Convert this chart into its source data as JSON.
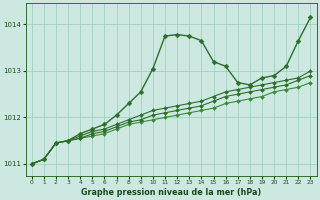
{
  "title": "Graphe pression niveau de la mer (hPa)",
  "background_color": "#cce8e0",
  "grid_color": "#99ccbb",
  "xlim": [
    -0.5,
    23.5
  ],
  "ylim": [
    1010.75,
    1014.45
  ],
  "yticks": [
    1011,
    1012,
    1013,
    1014
  ],
  "xticks": [
    0,
    1,
    2,
    3,
    4,
    5,
    6,
    7,
    8,
    9,
    10,
    11,
    12,
    13,
    14,
    15,
    16,
    17,
    18,
    19,
    20,
    21,
    22,
    23
  ],
  "series": [
    {
      "x": [
        0,
        1,
        2,
        3,
        4,
        5,
        6,
        7,
        8,
        9,
        10,
        11,
        12,
        13,
        14,
        15,
        16,
        17,
        18,
        19,
        20,
        21,
        22,
        23
      ],
      "y": [
        1011.0,
        1011.1,
        1011.45,
        1011.5,
        1011.55,
        1011.6,
        1011.65,
        1011.75,
        1011.85,
        1011.9,
        1011.95,
        1012.0,
        1012.05,
        1012.1,
        1012.15,
        1012.2,
        1012.3,
        1012.35,
        1012.4,
        1012.45,
        1012.55,
        1012.6,
        1012.65,
        1012.75
      ],
      "color": "#3a8a3a",
      "marker": "D",
      "markersize": 2.0,
      "linewidth": 0.8,
      "zorder": 2
    },
    {
      "x": [
        0,
        1,
        2,
        3,
        4,
        5,
        6,
        7,
        8,
        9,
        10,
        11,
        12,
        13,
        14,
        15,
        16,
        17,
        18,
        19,
        20,
        21,
        22,
        23
      ],
      "y": [
        1011.0,
        1011.1,
        1011.45,
        1011.5,
        1011.55,
        1011.65,
        1011.7,
        1011.8,
        1011.9,
        1011.95,
        1012.05,
        1012.1,
        1012.15,
        1012.2,
        1012.25,
        1012.35,
        1012.45,
        1012.5,
        1012.55,
        1012.6,
        1012.65,
        1012.7,
        1012.8,
        1012.9
      ],
      "color": "#2d6e2d",
      "marker": "D",
      "markersize": 2.0,
      "linewidth": 0.8,
      "zorder": 2
    },
    {
      "x": [
        0,
        1,
        2,
        3,
        4,
        5,
        6,
        7,
        8,
        9,
        10,
        11,
        12,
        13,
        14,
        15,
        16,
        17,
        18,
        19,
        20,
        21,
        22,
        23
      ],
      "y": [
        1011.0,
        1011.1,
        1011.45,
        1011.5,
        1011.6,
        1011.7,
        1011.75,
        1011.85,
        1011.95,
        1012.05,
        1012.15,
        1012.2,
        1012.25,
        1012.3,
        1012.35,
        1012.45,
        1012.55,
        1012.6,
        1012.65,
        1012.7,
        1012.75,
        1012.8,
        1012.85,
        1013.0
      ],
      "color": "#2d6e2d",
      "marker": "D",
      "markersize": 2.0,
      "linewidth": 0.8,
      "zorder": 2
    },
    {
      "x": [
        0,
        1,
        2,
        3,
        4,
        5,
        6,
        7,
        8,
        9,
        10,
        11,
        12,
        13,
        14,
        15,
        16,
        17,
        18,
        19,
        20,
        21,
        22,
        23
      ],
      "y": [
        1011.0,
        1011.1,
        1011.45,
        1011.5,
        1011.65,
        1011.75,
        1011.85,
        1012.05,
        1012.3,
        1012.55,
        1013.05,
        1013.75,
        1013.78,
        1013.75,
        1013.65,
        1013.2,
        1013.1,
        1012.75,
        1012.7,
        1012.85,
        1012.9,
        1013.1,
        1013.65,
        1014.15
      ],
      "color": "#2d6e2d",
      "marker": "D",
      "markersize": 2.5,
      "linewidth": 1.0,
      "zorder": 3
    }
  ]
}
